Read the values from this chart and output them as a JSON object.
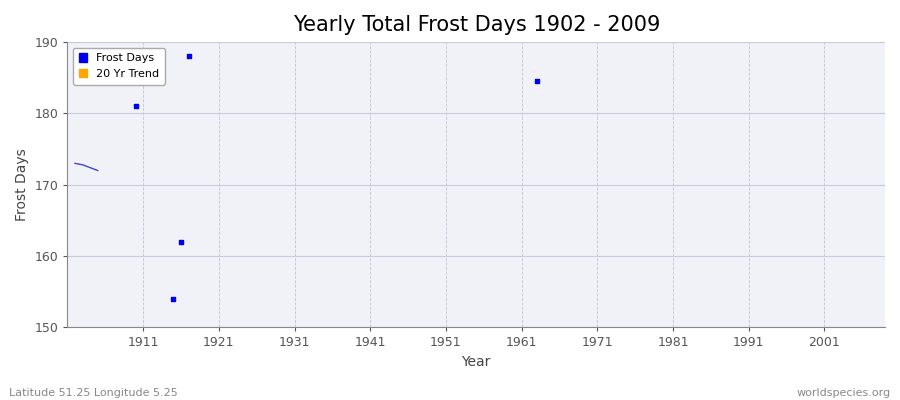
{
  "title": "Yearly Total Frost Days 1902 - 2009",
  "xlabel": "Year",
  "ylabel": "Frost Days",
  "ylim": [
    150,
    190
  ],
  "xlim": [
    1901,
    2009
  ],
  "xticks": [
    1911,
    1921,
    1931,
    1941,
    1951,
    1961,
    1971,
    1981,
    1991,
    2001
  ],
  "yticks": [
    150,
    160,
    170,
    180,
    190
  ],
  "scatter_years": [
    1910,
    1917,
    1916,
    1915,
    1963
  ],
  "scatter_values": [
    181,
    188,
    162,
    154,
    184.5
  ],
  "line_years": [
    1902,
    1903,
    1904,
    1905
  ],
  "line_values": [
    173,
    172.8,
    172.4,
    172.0
  ],
  "scatter_color": "#0000ee",
  "line_color": "#4444cc",
  "trend_color": "#ffa500",
  "bg_color": "#ffffff",
  "plot_bg": "#f0f2f8",
  "grid_color_h": "#c8ccd8",
  "grid_color_v": "#c0c4d4",
  "footer_left": "Latitude 51.25 Longitude 5.25",
  "footer_right": "worldspecies.org",
  "title_fontsize": 15,
  "axis_label_fontsize": 10,
  "tick_fontsize": 9,
  "footer_fontsize": 8
}
